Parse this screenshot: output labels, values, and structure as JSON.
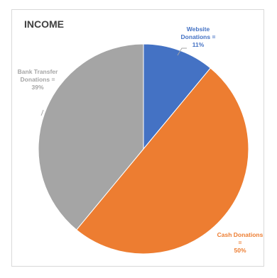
{
  "chart_data": {
    "type": "pie",
    "title": "INCOME",
    "slices": [
      {
        "label_lines": [
          "Website",
          "Donations =",
          "11%"
        ],
        "value": 11,
        "color": "#4472C4"
      },
      {
        "label_lines": [
          "Cash Donations",
          "=",
          "50%"
        ],
        "value": 50,
        "color": "#ED7D31"
      },
      {
        "label_lines": [
          "Bank Transfer",
          "Donations =",
          "39%"
        ],
        "value": 39,
        "color": "#A5A5A5"
      }
    ],
    "legend": "none"
  }
}
